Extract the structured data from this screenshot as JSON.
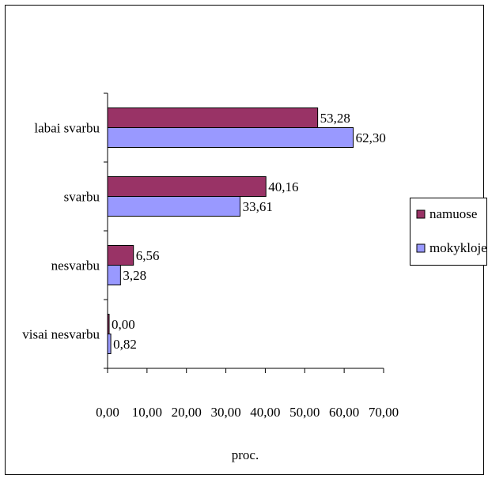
{
  "chart_data": {
    "type": "bar",
    "orientation": "horizontal",
    "categories": [
      "labai svarbu",
      "svarbu",
      "nesvarbu",
      "visai nesvarbu"
    ],
    "series": [
      {
        "name": "namuose",
        "values": [
          53.28,
          40.16,
          6.56,
          0.0
        ],
        "labels": [
          "53,28",
          "40,16",
          "6,56",
          "0,00"
        ],
        "color": "#993366"
      },
      {
        "name": "mokykloje",
        "values": [
          62.3,
          33.61,
          3.28,
          0.82
        ],
        "labels": [
          "62,30",
          "33,61",
          "3,28",
          "0,82"
        ],
        "color": "#9999ff"
      }
    ],
    "xlabel": "proc.",
    "xlim": [
      0,
      70
    ],
    "xticks": [
      0,
      10,
      20,
      30,
      40,
      50,
      60,
      70
    ],
    "xtick_labels": [
      "0,00",
      "10,00",
      "20,00",
      "30,00",
      "40,00",
      "50,00",
      "60,00",
      "70,00"
    ],
    "legend_position": "right",
    "grid": false
  }
}
